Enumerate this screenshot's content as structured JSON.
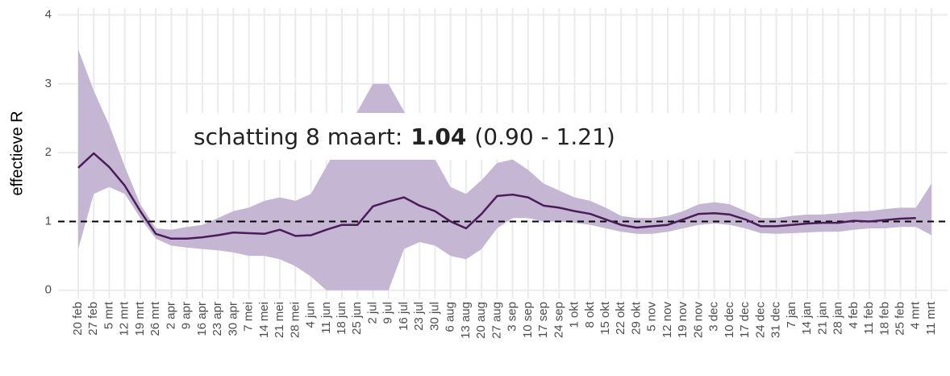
{
  "chart_data": {
    "type": "line-band",
    "y_label": "effectieve R",
    "categories": [
      "20 feb",
      "27 feb",
      "5 mrt",
      "12 mrt",
      "19 mrt",
      "26 mrt",
      "2 apr",
      "9 apr",
      "16 apr",
      "23 apr",
      "30 apr",
      "7 mei",
      "14 mei",
      "21 mei",
      "28 mei",
      "4 jun",
      "11 jun",
      "18 jun",
      "25 jun",
      "2 jul",
      "9 jul",
      "16 jul",
      "23 jul",
      "30 jul",
      "6 aug",
      "13 aug",
      "20 aug",
      "27 aug",
      "3 sep",
      "10 sep",
      "17 sep",
      "24 sep",
      "1 okt",
      "8 okt",
      "15 okt",
      "22 okt",
      "29 okt",
      "5 nov",
      "12 nov",
      "19 nov",
      "26 nov",
      "3 dec",
      "10 dec",
      "17 dec",
      "24 dec",
      "31 dec",
      "7 jan",
      "14 jan",
      "21 jan",
      "28 jan",
      "4 feb",
      "11 feb",
      "18 feb",
      "25 feb",
      "4 mrt",
      "11 mrt"
    ],
    "estimate": [
      1.78,
      1.99,
      1.79,
      1.52,
      1.15,
      0.82,
      0.75,
      0.75,
      0.77,
      0.8,
      0.84,
      0.83,
      0.82,
      0.88,
      0.79,
      0.8,
      0.88,
      0.95,
      0.95,
      1.22,
      1.29,
      1.35,
      1.23,
      1.15,
      1.0,
      0.9,
      1.11,
      1.37,
      1.39,
      1.35,
      1.23,
      1.2,
      1.15,
      1.11,
      1.03,
      0.95,
      0.91,
      0.93,
      0.95,
      1.03,
      1.11,
      1.12,
      1.1,
      1.03,
      0.93,
      0.93,
      0.95,
      0.97,
      0.98,
      0.98,
      1.01,
      1.0,
      1.02,
      1.04,
      1.05,
      null
    ],
    "lower": [
      0.6,
      1.4,
      1.5,
      1.4,
      1.05,
      0.75,
      0.65,
      0.62,
      0.6,
      0.58,
      0.55,
      0.5,
      0.5,
      0.45,
      0.35,
      0.2,
      0.0,
      0.0,
      0.0,
      0.0,
      0.0,
      0.6,
      0.7,
      0.65,
      0.5,
      0.45,
      0.6,
      0.9,
      1.05,
      1.05,
      1.0,
      1.0,
      0.98,
      0.95,
      0.9,
      0.85,
      0.82,
      0.82,
      0.85,
      0.9,
      0.95,
      0.97,
      0.95,
      0.9,
      0.83,
      0.82,
      0.83,
      0.84,
      0.85,
      0.85,
      0.88,
      0.9,
      0.9,
      0.92,
      0.92,
      0.8
    ],
    "upper": [
      3.5,
      2.9,
      2.4,
      1.8,
      1.25,
      0.9,
      0.88,
      0.92,
      0.95,
      1.05,
      1.15,
      1.2,
      1.3,
      1.35,
      1.3,
      1.4,
      1.8,
      2.2,
      2.6,
      3.0,
      3.0,
      2.6,
      2.3,
      1.9,
      1.5,
      1.4,
      1.6,
      1.85,
      1.9,
      1.75,
      1.55,
      1.45,
      1.35,
      1.3,
      1.2,
      1.08,
      1.05,
      1.05,
      1.08,
      1.15,
      1.25,
      1.28,
      1.25,
      1.15,
      1.05,
      1.05,
      1.08,
      1.1,
      1.1,
      1.12,
      1.14,
      1.15,
      1.18,
      1.2,
      1.2,
      1.55
    ],
    "line_color": "#4b1c5a",
    "band_color": "#c5b6d3",
    "reference_line": 1,
    "ylim": [
      -0.12,
      4.1
    ],
    "yticks": [
      0,
      1,
      2,
      3,
      4
    ],
    "grid": true,
    "annotation": {
      "prefix": "schatting 8 maart:",
      "value": 1.04,
      "interval": "(0.90 - 1.21)"
    }
  }
}
